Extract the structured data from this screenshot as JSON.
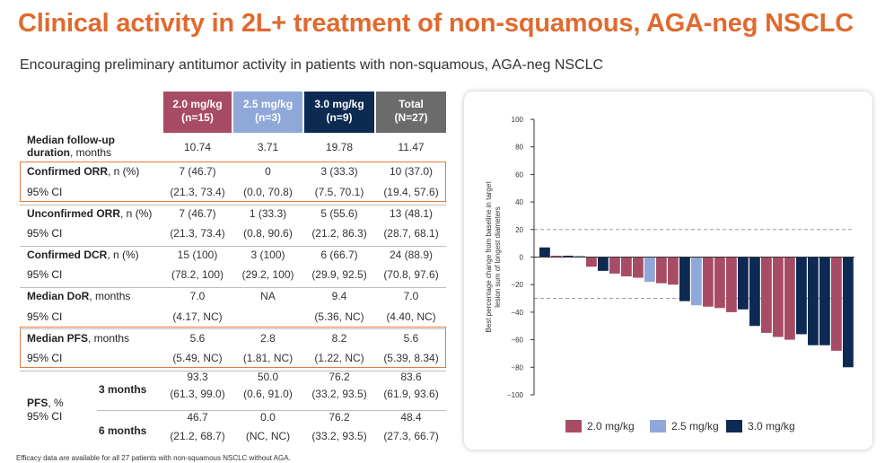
{
  "title": "Clinical activity in 2L+ treatment of non-squamous, AGA-neg NSCLC",
  "subtitle": "Encouraging preliminary antitumor activity in patients with non-squamous, AGA-neg NSCLC",
  "footnote": "Efficacy data are available for all 27 patients with non-squamous NSCLC without AGA.",
  "colors": {
    "title": "#e06a2e",
    "c20": "#a84c66",
    "c25": "#8fa8d9",
    "c30": "#0d2a52",
    "total": "#6b6b6b",
    "highlight": "#e07b3c"
  },
  "table": {
    "headers": [
      {
        "line1": "2.0 mg/kg",
        "line2": "(n=15)"
      },
      {
        "line1": "2.5 mg/kg",
        "line2": "(n=3)"
      },
      {
        "line1": "3.0 mg/kg",
        "line2": "(n=9)"
      },
      {
        "line1": "Total",
        "line2": "(N=27)"
      }
    ],
    "followup": {
      "label_bold": "Median follow-up",
      "label_bold2": "duration",
      "label_rest": ", months",
      "values": [
        "10.74",
        "3.71",
        "19.78",
        "11.47"
      ]
    },
    "rows": [
      {
        "label_bold": "Confirmed ORR",
        "label_rest": ", n (%)",
        "values": [
          "7 (46.7)",
          "0",
          "3 (33.3)",
          "10 (37.0)"
        ]
      },
      {
        "label_bold": "",
        "label_rest": "95% CI",
        "values": [
          "(21.3, 73.4)",
          "(0.0, 70.8)",
          "(7.5, 70.1)",
          "(19.4, 57.6)"
        ]
      },
      {
        "label_bold": "Unconfirmed ORR",
        "label_rest": ", n (%)",
        "values": [
          "7 (46.7)",
          "1 (33.3)",
          "5 (55.6)",
          "13 (48.1)"
        ]
      },
      {
        "label_bold": "",
        "label_rest": "95% CI",
        "values": [
          "(21.3, 73.4)",
          "(0.8, 90.6)",
          "(21.2, 86.3)",
          "(28.7, 68.1)"
        ]
      },
      {
        "label_bold": "Confirmed DCR",
        "label_rest": ", n (%)",
        "values": [
          "15 (100)",
          "3 (100)",
          "6 (66.7)",
          "24 (88.9)"
        ]
      },
      {
        "label_bold": "",
        "label_rest": "95% CI",
        "values": [
          "(78.2, 100)",
          "(29.2, 100)",
          "(29.9, 92.5)",
          "(70.8, 97.6)"
        ]
      },
      {
        "label_bold": "Median DoR",
        "label_rest": ", months",
        "values": [
          "7.0",
          "NA",
          "9.4",
          "7.0"
        ]
      },
      {
        "label_bold": "",
        "label_rest": "95% CI",
        "values": [
          "(4.17, NC)",
          "",
          "(5.36, NC)",
          "(4.40, NC)"
        ]
      },
      {
        "label_bold": "Median PFS",
        "label_rest": ", months",
        "values": [
          "5.6",
          "2.8",
          "8.2",
          "5.6"
        ]
      },
      {
        "label_bold": "",
        "label_rest": "95% CI",
        "values": [
          "(5.49, NC)",
          "(1.81, NC)",
          "(1.22, NC)",
          "(5.39, 8.34)"
        ]
      }
    ],
    "pfs": {
      "label_bold": "PFS",
      "label_rest": ", %",
      "label_ci": "95% CI",
      "sub": [
        {
          "label": "3 months",
          "values": [
            "93.3",
            "50.0",
            "76.2",
            "83.6"
          ],
          "ci": [
            "(61.3, 99.0)",
            "(0.6, 91.0)",
            "(33.2, 93.5)",
            "(61.9, 93.6)"
          ]
        },
        {
          "label": "6 months",
          "values": [
            "46.7",
            "0.0",
            "76.2",
            "48.4"
          ],
          "ci": [
            "(21.2, 68.7)",
            "(NC, NC)",
            "(33.2, 93.5)",
            "(27.3, 66.7)"
          ]
        }
      ]
    }
  },
  "chart_data": {
    "type": "bar",
    "title": "",
    "xlabel": "",
    "ylabel": "Best percentage change from baseline in target lesion sum of longest diameters",
    "ylim": [
      -100,
      100
    ],
    "yticks": [
      100,
      80,
      60,
      40,
      20,
      0,
      -20,
      -40,
      -60,
      -80,
      -100
    ],
    "reference_lines": [
      20,
      -30
    ],
    "series_names": [
      "2.0 mg/kg",
      "2.5 mg/kg",
      "3.0 mg/kg"
    ],
    "legend_position": "bottom",
    "bars": [
      {
        "value": 7,
        "group": "3.0 mg/kg"
      },
      {
        "value": 1,
        "group": "2.0 mg/kg"
      },
      {
        "value": 1,
        "group": "3.0 mg/kg"
      },
      {
        "value": 1,
        "group": "2.5 mg/kg"
      },
      {
        "value": -7,
        "group": "2.0 mg/kg"
      },
      {
        "value": -10,
        "group": "3.0 mg/kg"
      },
      {
        "value": -12,
        "group": "2.0 mg/kg"
      },
      {
        "value": -14,
        "group": "2.0 mg/kg"
      },
      {
        "value": -15,
        "group": "2.0 mg/kg"
      },
      {
        "value": -18,
        "group": "2.5 mg/kg"
      },
      {
        "value": -19,
        "group": "2.0 mg/kg"
      },
      {
        "value": -20,
        "group": "2.0 mg/kg"
      },
      {
        "value": -32,
        "group": "3.0 mg/kg"
      },
      {
        "value": -35,
        "group": "2.5 mg/kg"
      },
      {
        "value": -36,
        "group": "2.0 mg/kg"
      },
      {
        "value": -37,
        "group": "2.0 mg/kg"
      },
      {
        "value": -40,
        "group": "2.0 mg/kg"
      },
      {
        "value": -38,
        "group": "3.0 mg/kg"
      },
      {
        "value": -50,
        "group": "3.0 mg/kg"
      },
      {
        "value": -55,
        "group": "2.0 mg/kg"
      },
      {
        "value": -58,
        "group": "2.0 mg/kg"
      },
      {
        "value": -60,
        "group": "2.0 mg/kg"
      },
      {
        "value": -56,
        "group": "3.0 mg/kg"
      },
      {
        "value": -64,
        "group": "3.0 mg/kg"
      },
      {
        "value": -64,
        "group": "3.0 mg/kg"
      },
      {
        "value": -68,
        "group": "2.0 mg/kg"
      },
      {
        "value": -80,
        "group": "3.0 mg/kg"
      }
    ]
  }
}
